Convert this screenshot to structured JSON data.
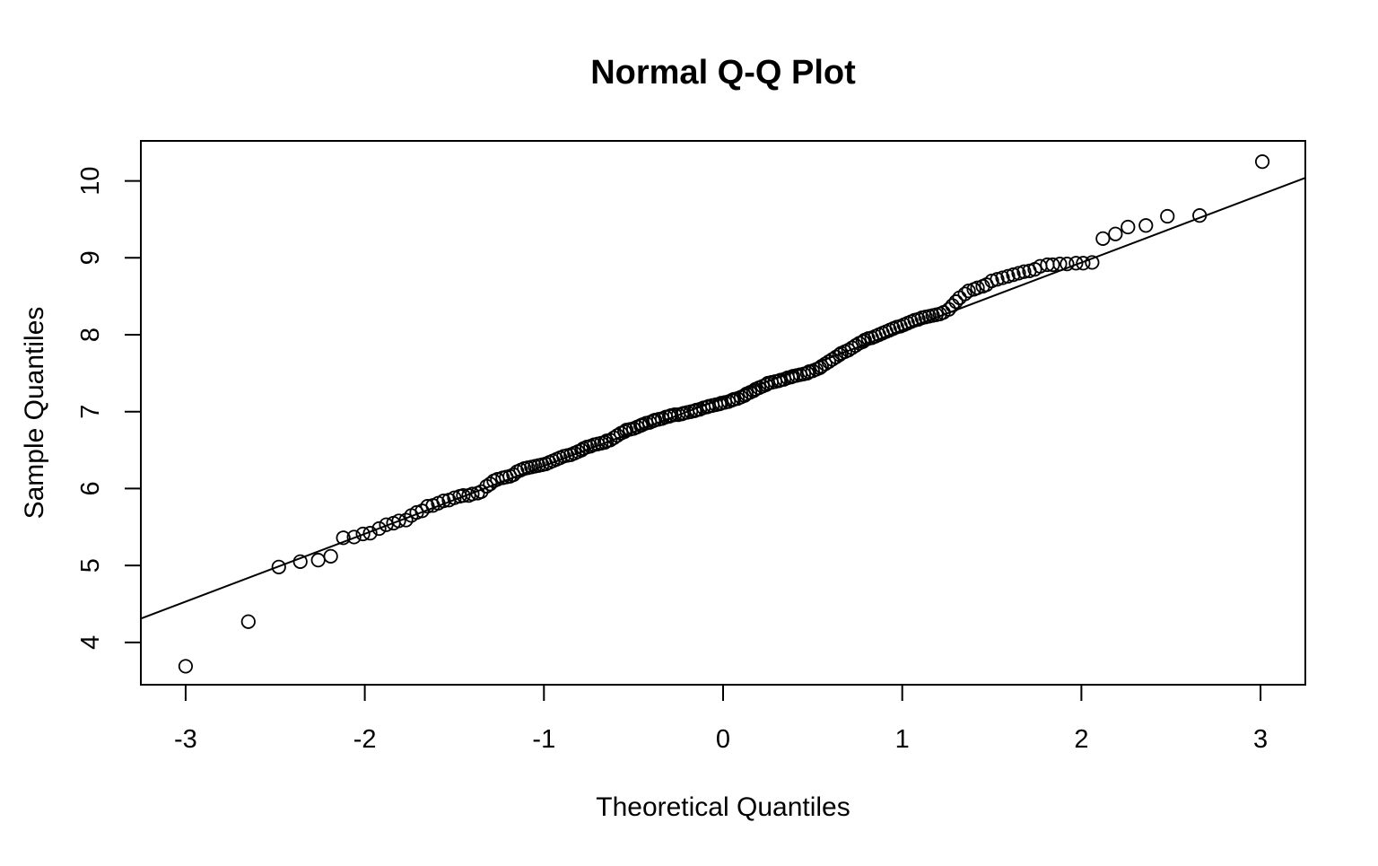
{
  "chart_data": {
    "type": "scatter",
    "title": "Normal Q-Q Plot",
    "xlabel": "Theoretical Quantiles",
    "ylabel": "Sample Quantiles",
    "xlim": [
      -3.25,
      3.25
    ],
    "ylim": [
      3.45,
      10.52
    ],
    "x_ticks": [
      -3,
      -2,
      -1,
      0,
      1,
      2,
      3
    ],
    "y_ticks": [
      4,
      5,
      6,
      7,
      8,
      9,
      10
    ],
    "grid": false,
    "reference_line": {
      "from": {
        "x": -3.25,
        "y": 4.31
      },
      "to": {
        "x": 3.25,
        "y": 10.04
      }
    },
    "series": [
      {
        "points": [
          [
            -3.0,
            3.69
          ],
          [
            -2.65,
            4.27
          ],
          [
            -2.48,
            4.98
          ],
          [
            -2.36,
            5.05
          ],
          [
            -2.26,
            5.07
          ],
          [
            -2.19,
            5.12
          ],
          [
            -2.12,
            5.36
          ],
          [
            -2.06,
            5.37
          ],
          [
            -2.01,
            5.41
          ],
          [
            -1.97,
            5.42
          ],
          [
            -1.92,
            5.48
          ],
          [
            -1.88,
            5.53
          ],
          [
            -1.84,
            5.55
          ],
          [
            -1.81,
            5.58
          ],
          [
            -1.77,
            5.59
          ],
          [
            -1.74,
            5.65
          ],
          [
            -1.71,
            5.69
          ],
          [
            -1.68,
            5.71
          ],
          [
            -1.65,
            5.77
          ],
          [
            -1.62,
            5.78
          ],
          [
            -1.59,
            5.81
          ],
          [
            -1.56,
            5.84
          ],
          [
            -1.53,
            5.85
          ],
          [
            -1.5,
            5.88
          ],
          [
            -1.47,
            5.9
          ],
          [
            -1.45,
            5.91
          ],
          [
            -1.42,
            5.91
          ],
          [
            -1.4,
            5.93
          ],
          [
            -1.37,
            5.94
          ],
          [
            -1.35,
            5.96
          ],
          [
            -1.32,
            6.03
          ],
          [
            -1.3,
            6.06
          ],
          [
            -1.28,
            6.1
          ],
          [
            -1.26,
            6.12
          ],
          [
            -1.23,
            6.14
          ],
          [
            -1.21,
            6.15
          ],
          [
            -1.19,
            6.16
          ],
          [
            -1.17,
            6.18
          ],
          [
            -1.15,
            6.22
          ],
          [
            -1.13,
            6.24
          ],
          [
            -1.11,
            6.26
          ],
          [
            -1.09,
            6.27
          ],
          [
            -1.07,
            6.28
          ],
          [
            -1.05,
            6.29
          ],
          [
            -1.03,
            6.3
          ],
          [
            -1.01,
            6.31
          ],
          [
            -0.99,
            6.32
          ],
          [
            -0.97,
            6.34
          ],
          [
            -0.95,
            6.36
          ],
          [
            -0.93,
            6.38
          ],
          [
            -0.91,
            6.4
          ],
          [
            -0.89,
            6.42
          ],
          [
            -0.87,
            6.43
          ],
          [
            -0.85,
            6.44
          ],
          [
            -0.83,
            6.46
          ],
          [
            -0.81,
            6.48
          ],
          [
            -0.79,
            6.5
          ],
          [
            -0.78,
            6.52
          ],
          [
            -0.76,
            6.54
          ],
          [
            -0.74,
            6.55
          ],
          [
            -0.72,
            6.57
          ],
          [
            -0.7,
            6.58
          ],
          [
            -0.68,
            6.59
          ],
          [
            -0.66,
            6.6
          ],
          [
            -0.65,
            6.62
          ],
          [
            -0.63,
            6.63
          ],
          [
            -0.61,
            6.66
          ],
          [
            -0.59,
            6.69
          ],
          [
            -0.57,
            6.72
          ],
          [
            -0.55,
            6.74
          ],
          [
            -0.54,
            6.76
          ],
          [
            -0.52,
            6.77
          ],
          [
            -0.5,
            6.78
          ],
          [
            -0.48,
            6.8
          ],
          [
            -0.46,
            6.82
          ],
          [
            -0.45,
            6.83
          ],
          [
            -0.43,
            6.85
          ],
          [
            -0.41,
            6.86
          ],
          [
            -0.39,
            6.88
          ],
          [
            -0.38,
            6.89
          ],
          [
            -0.36,
            6.9
          ],
          [
            -0.34,
            6.91
          ],
          [
            -0.32,
            6.93
          ],
          [
            -0.3,
            6.94
          ],
          [
            -0.29,
            6.95
          ],
          [
            -0.27,
            6.96
          ],
          [
            -0.25,
            6.96
          ],
          [
            -0.23,
            6.97
          ],
          [
            -0.22,
            6.98
          ],
          [
            -0.2,
            6.99
          ],
          [
            -0.18,
            7.0
          ],
          [
            -0.16,
            7.01
          ],
          [
            -0.15,
            7.02
          ],
          [
            -0.13,
            7.03
          ],
          [
            -0.11,
            7.05
          ],
          [
            -0.09,
            7.06
          ],
          [
            -0.08,
            7.07
          ],
          [
            -0.06,
            7.08
          ],
          [
            -0.04,
            7.09
          ],
          [
            -0.02,
            7.1
          ],
          [
            -0.01,
            7.11
          ],
          [
            0.01,
            7.12
          ],
          [
            0.03,
            7.13
          ],
          [
            0.05,
            7.15
          ],
          [
            0.06,
            7.16
          ],
          [
            0.08,
            7.17
          ],
          [
            0.1,
            7.19
          ],
          [
            0.12,
            7.21
          ],
          [
            0.13,
            7.23
          ],
          [
            0.15,
            7.25
          ],
          [
            0.17,
            7.27
          ],
          [
            0.18,
            7.29
          ],
          [
            0.2,
            7.31
          ],
          [
            0.22,
            7.33
          ],
          [
            0.24,
            7.35
          ],
          [
            0.25,
            7.37
          ],
          [
            0.27,
            7.38
          ],
          [
            0.29,
            7.39
          ],
          [
            0.31,
            7.4
          ],
          [
            0.32,
            7.41
          ],
          [
            0.34,
            7.42
          ],
          [
            0.36,
            7.44
          ],
          [
            0.38,
            7.45
          ],
          [
            0.39,
            7.46
          ],
          [
            0.41,
            7.47
          ],
          [
            0.43,
            7.48
          ],
          [
            0.45,
            7.49
          ],
          [
            0.47,
            7.5
          ],
          [
            0.48,
            7.52
          ],
          [
            0.5,
            7.53
          ],
          [
            0.52,
            7.55
          ],
          [
            0.54,
            7.57
          ],
          [
            0.55,
            7.59
          ],
          [
            0.57,
            7.62
          ],
          [
            0.59,
            7.65
          ],
          [
            0.61,
            7.68
          ],
          [
            0.63,
            7.71
          ],
          [
            0.65,
            7.74
          ],
          [
            0.66,
            7.76
          ],
          [
            0.68,
            7.78
          ],
          [
            0.7,
            7.8
          ],
          [
            0.72,
            7.83
          ],
          [
            0.74,
            7.86
          ],
          [
            0.76,
            7.89
          ],
          [
            0.78,
            7.91
          ],
          [
            0.79,
            7.93
          ],
          [
            0.81,
            7.95
          ],
          [
            0.83,
            7.96
          ],
          [
            0.85,
            7.98
          ],
          [
            0.87,
            8.0
          ],
          [
            0.89,
            8.02
          ],
          [
            0.91,
            8.04
          ],
          [
            0.93,
            8.06
          ],
          [
            0.95,
            8.08
          ],
          [
            0.97,
            8.1
          ],
          [
            0.99,
            8.11
          ],
          [
            1.01,
            8.13
          ],
          [
            1.03,
            8.15
          ],
          [
            1.05,
            8.17
          ],
          [
            1.07,
            8.19
          ],
          [
            1.09,
            8.2
          ],
          [
            1.11,
            8.22
          ],
          [
            1.13,
            8.23
          ],
          [
            1.15,
            8.24
          ],
          [
            1.17,
            8.25
          ],
          [
            1.19,
            8.26
          ],
          [
            1.21,
            8.27
          ],
          [
            1.23,
            8.29
          ],
          [
            1.26,
            8.33
          ],
          [
            1.28,
            8.38
          ],
          [
            1.3,
            8.43
          ],
          [
            1.32,
            8.48
          ],
          [
            1.35,
            8.53
          ],
          [
            1.37,
            8.57
          ],
          [
            1.4,
            8.59
          ],
          [
            1.42,
            8.61
          ],
          [
            1.45,
            8.63
          ],
          [
            1.47,
            8.65
          ],
          [
            1.5,
            8.7
          ],
          [
            1.53,
            8.72
          ],
          [
            1.56,
            8.74
          ],
          [
            1.59,
            8.76
          ],
          [
            1.62,
            8.78
          ],
          [
            1.65,
            8.8
          ],
          [
            1.68,
            8.82
          ],
          [
            1.71,
            8.83
          ],
          [
            1.74,
            8.85
          ],
          [
            1.77,
            8.89
          ],
          [
            1.81,
            8.91
          ],
          [
            1.84,
            8.91
          ],
          [
            1.88,
            8.92
          ],
          [
            1.92,
            8.92
          ],
          [
            1.97,
            8.93
          ],
          [
            2.01,
            8.93
          ],
          [
            2.06,
            8.94
          ],
          [
            2.12,
            9.25
          ],
          [
            2.19,
            9.31
          ],
          [
            2.26,
            9.4
          ],
          [
            2.36,
            9.42
          ],
          [
            2.48,
            9.54
          ],
          [
            2.66,
            9.55
          ],
          [
            3.01,
            10.25
          ]
        ]
      }
    ]
  }
}
